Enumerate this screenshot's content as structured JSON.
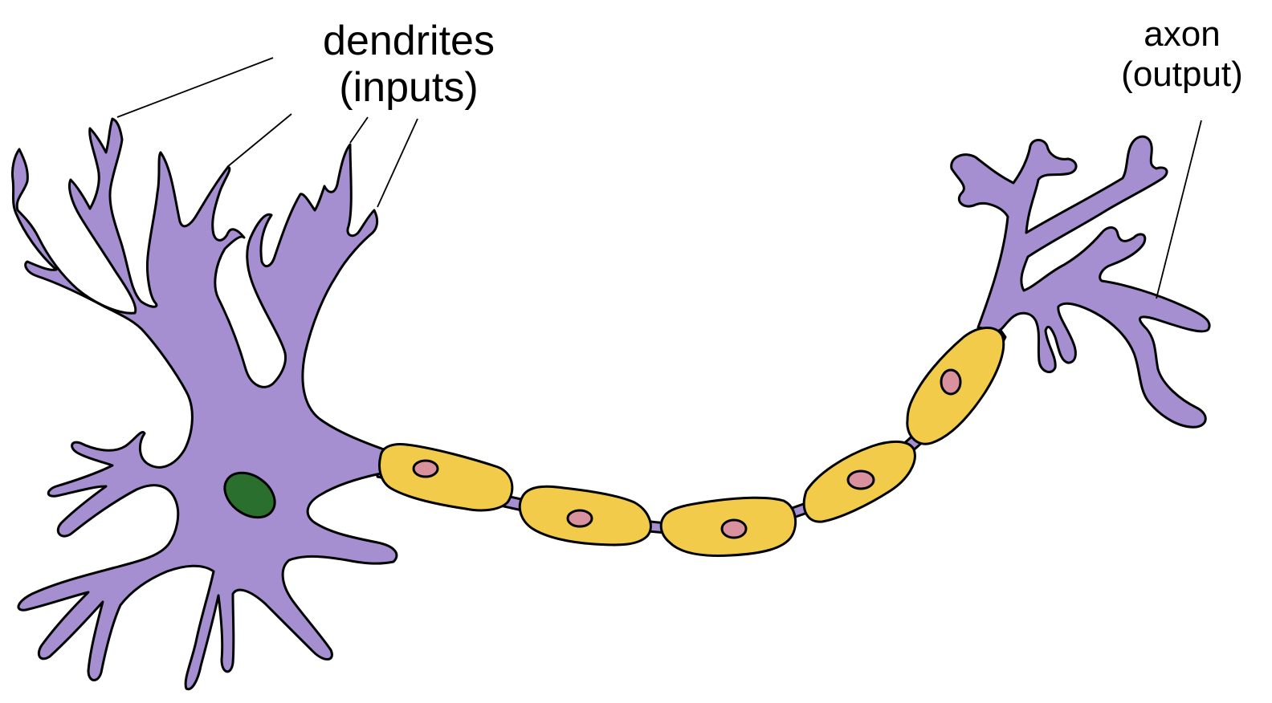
{
  "labels": {
    "dendrites": {
      "line1": "dendrites",
      "line2": "(inputs)"
    },
    "axon": {
      "line1": "axon",
      "line2": "(output)"
    }
  },
  "colors": {
    "neuron_body": "#a68fd1",
    "myelin_sheath": "#f2cb4a",
    "sheath_nucleus": "#d9919e",
    "cell_nucleus": "#2a6f2d",
    "outline": "#000000",
    "background": "#ffffff"
  }
}
